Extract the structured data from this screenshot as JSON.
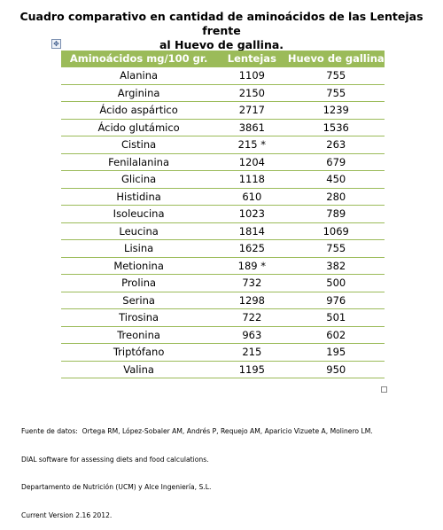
{
  "title_line1": "Cuadro comparativo en cantidad de aminoácidos de las Lentejas frente",
  "title_line2": "al Huevo de gallina.",
  "move_handle_icon": "move-cross-icon",
  "table": {
    "headers": [
      "Aminoácidos mg/100 gr.",
      "Lentejas",
      "Huevo de gallina"
    ],
    "rows": [
      [
        "Alanina",
        "1109",
        "755"
      ],
      [
        "Arginina",
        "2150",
        "755"
      ],
      [
        "Ácido aspártico",
        "2717",
        "1239"
      ],
      [
        "Ácido glutámico",
        "3861",
        "1536"
      ],
      [
        "Cistina",
        "215 *",
        "263"
      ],
      [
        "Fenilalanina",
        "1204",
        "679"
      ],
      [
        "Glicina",
        "1118",
        "450"
      ],
      [
        "Histidina",
        "610",
        "280"
      ],
      [
        "Isoleucina",
        "1023",
        "789"
      ],
      [
        "Leucina",
        "1814",
        "1069"
      ],
      [
        "Lisina",
        "1625",
        "755"
      ],
      [
        "Metionina",
        "189 *",
        "382"
      ],
      [
        "Prolina",
        "732",
        "500"
      ],
      [
        "Serina",
        "1298",
        "976"
      ],
      [
        "Tirosina",
        "722",
        "501"
      ],
      [
        "Treonina",
        "963",
        "602"
      ],
      [
        "Triptófano",
        "215",
        "195"
      ],
      [
        "Valina",
        "1195",
        "950"
      ]
    ]
  },
  "source_lines": [
    "Fuente de datos:  Ortega RM, López-Sobaler AM, Andrés P, Requejo AM, Aparicio Vizuete A, Molinero LM.",
    "DIAL software for assessing diets and food calculations.",
    "Departamento de Nutrición (UCM) y Alce Ingeniería, S.L.",
    "Current Version 2.16 2012."
  ],
  "colors": {
    "header_bg": "#9bbb59",
    "header_text": "#ffffff",
    "rule": "#9bbb59"
  }
}
